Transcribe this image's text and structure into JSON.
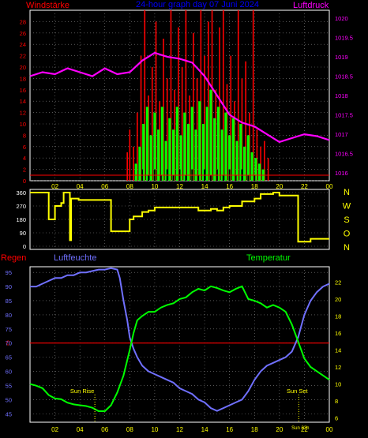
{
  "header": {
    "left_label": "Windstärke",
    "title": "24-hour graph day  07 Juni 2024",
    "right_label": "Luftdruck"
  },
  "colors": {
    "background": "#000000",
    "frame": "#ffffff",
    "gust": "#ff0000",
    "wind_avg": "#00ff00",
    "wind_min": "#000000",
    "pressure": "#ff00ff",
    "direction": "#ffff00",
    "humidity": "#7070ff",
    "temperature": "#00ff00",
    "rain": "#ff0000",
    "left_ticks": "#ff0000",
    "right_ticks_top": "#ff00ff",
    "right_ticks_bottom": "#ffff00",
    "x_ticks": "#ffff00",
    "title": "#0000ff"
  },
  "x_tick_labels": [
    "02",
    "04",
    "06",
    "08",
    "10",
    "12",
    "14",
    "16",
    "18",
    "20",
    "22",
    "00"
  ],
  "chart_data": [
    {
      "type": "bar",
      "name": "wind",
      "x": "hours 0-24",
      "ylabel": "Windstärke",
      "ylim": [
        0,
        30
      ],
      "yticks": [
        0,
        2,
        4,
        6,
        8,
        10,
        12,
        14,
        16,
        18,
        20,
        22,
        24,
        26,
        28
      ],
      "grid": true,
      "series": [
        {
          "style": "gust-segments",
          "segments": [
            [
              7.8,
              0,
              5
            ],
            [
              8.0,
              0,
              9
            ],
            [
              8.3,
              0,
              6
            ],
            [
              8.6,
              0,
              12
            ],
            [
              8.9,
              0,
              22
            ],
            [
              9.2,
              0,
              30
            ],
            [
              9.5,
              0,
              15
            ],
            [
              9.8,
              0,
              20
            ],
            [
              10.1,
              0,
              28
            ],
            [
              10.4,
              0,
              14
            ],
            [
              10.7,
              0,
              25
            ],
            [
              11.0,
              0,
              18
            ],
            [
              11.3,
              0,
              30
            ],
            [
              11.6,
              0,
              16
            ],
            [
              11.9,
              0,
              27
            ],
            [
              12.2,
              0,
              20
            ],
            [
              12.5,
              0,
              30
            ],
            [
              12.8,
              0,
              15
            ],
            [
              13.1,
              0,
              26
            ],
            [
              13.4,
              0,
              18
            ],
            [
              13.7,
              0,
              30
            ],
            [
              14.0,
              0,
              22
            ],
            [
              14.3,
              0,
              28
            ],
            [
              14.6,
              0,
              30
            ],
            [
              14.9,
              0,
              16
            ],
            [
              15.2,
              0,
              27
            ],
            [
              15.5,
              0,
              30
            ],
            [
              15.8,
              0,
              17
            ],
            [
              16.1,
              0,
              22
            ],
            [
              16.4,
              0,
              14
            ],
            [
              16.7,
              0,
              30
            ],
            [
              17.0,
              0,
              18
            ],
            [
              17.3,
              0,
              21
            ],
            [
              17.6,
              0,
              12
            ],
            [
              17.9,
              0,
              30
            ],
            [
              18.2,
              0,
              9
            ],
            [
              18.5,
              0,
              6
            ],
            [
              18.8,
              0,
              7
            ],
            [
              19.1,
              0,
              4
            ]
          ]
        },
        {
          "style": "avg-segments",
          "segments": [
            [
              8.5,
              0,
              3
            ],
            [
              8.8,
              0,
              6
            ],
            [
              9.1,
              0,
              10
            ],
            [
              9.4,
              0,
              13
            ],
            [
              9.7,
              0,
              8
            ],
            [
              10.0,
              0,
              12
            ],
            [
              10.3,
              0,
              9
            ],
            [
              10.6,
              0,
              13
            ],
            [
              10.9,
              0,
              7
            ],
            [
              11.2,
              0,
              11
            ],
            [
              11.5,
              0,
              9
            ],
            [
              11.8,
              0,
              13
            ],
            [
              12.1,
              0,
              8
            ],
            [
              12.4,
              0,
              12
            ],
            [
              12.7,
              0,
              10
            ],
            [
              13.0,
              0,
              13
            ],
            [
              13.3,
              0,
              9
            ],
            [
              13.6,
              0,
              14
            ],
            [
              13.9,
              0,
              10
            ],
            [
              14.2,
              0,
              13
            ],
            [
              14.5,
              0,
              16
            ],
            [
              14.8,
              0,
              11
            ],
            [
              15.1,
              0,
              13
            ],
            [
              15.4,
              0,
              9
            ],
            [
              15.7,
              0,
              12
            ],
            [
              16.0,
              0,
              8
            ],
            [
              16.3,
              0,
              11
            ],
            [
              16.6,
              0,
              7
            ],
            [
              16.9,
              0,
              10
            ],
            [
              17.2,
              0,
              6
            ],
            [
              17.5,
              0,
              8
            ],
            [
              17.8,
              0,
              5
            ],
            [
              18.1,
              0,
              4
            ],
            [
              18.4,
              0,
              3
            ],
            [
              18.7,
              0,
              2
            ]
          ]
        },
        {
          "style": "min-segments",
          "segments": [
            [
              9.0,
              0,
              2
            ],
            [
              9.5,
              0,
              1
            ],
            [
              10.0,
              0,
              2
            ],
            [
              10.5,
              0,
              1
            ],
            [
              11.0,
              0,
              2
            ],
            [
              11.5,
              0,
              1
            ],
            [
              12.0,
              0,
              2
            ],
            [
              12.5,
              0,
              1
            ],
            [
              13.0,
              0,
              2
            ],
            [
              13.5,
              0,
              1
            ],
            [
              14.0,
              0,
              2
            ],
            [
              14.5,
              0,
              1
            ],
            [
              15.0,
              0,
              2
            ],
            [
              15.5,
              0,
              1
            ],
            [
              16.0,
              0,
              2
            ],
            [
              16.5,
              0,
              1
            ],
            [
              17.0,
              0,
              2
            ],
            [
              17.5,
              0,
              1
            ],
            [
              18.0,
              0,
              1
            ]
          ]
        }
      ]
    },
    {
      "type": "line",
      "name": "pressure",
      "ylabel": "Luftdruck",
      "ylim": [
        1015.8,
        1020.2
      ],
      "yticks": [
        1016,
        1016.5,
        1017,
        1017.5,
        1018,
        1018.5,
        1019,
        1019.5,
        1020
      ],
      "x": [
        0,
        1,
        2,
        3,
        4,
        5,
        6,
        7,
        8,
        9,
        10,
        11,
        12,
        13,
        14,
        15,
        16,
        17,
        18,
        19,
        20,
        21,
        22,
        23,
        24
      ],
      "values": [
        1018.5,
        1018.6,
        1018.55,
        1018.7,
        1018.6,
        1018.5,
        1018.7,
        1018.55,
        1018.6,
        1018.9,
        1019.1,
        1019.0,
        1018.95,
        1018.85,
        1018.5,
        1018.0,
        1017.5,
        1017.3,
        1017.2,
        1017.0,
        1016.8,
        1016.9,
        1017.0,
        1016.95,
        1016.85
      ]
    },
    {
      "type": "line",
      "name": "direction",
      "ylim": [
        0,
        360
      ],
      "yticks": [
        0,
        90,
        180,
        270,
        360
      ],
      "right_labels": [
        "N",
        "W",
        "S",
        "O",
        "N"
      ],
      "x": [
        0,
        1.5,
        1.5,
        2.0,
        2.0,
        2.5,
        2.5,
        2.7,
        2.7,
        3.2,
        3.2,
        3.3,
        3.3,
        3.9,
        3.9,
        6.5,
        6.5,
        8.0,
        8.0,
        8.3,
        8.3,
        9.0,
        9.0,
        9.5,
        9.5,
        10.0,
        10.0,
        13.5,
        13.5,
        14.5,
        14.5,
        15.0,
        15.0,
        15.5,
        15.5,
        16.0,
        16.0,
        17.0,
        17.0,
        18.0,
        18.0,
        18.5,
        18.5,
        19.5,
        19.5,
        20.0,
        20.0,
        21.5,
        21.5,
        22.5,
        22.5,
        24
      ],
      "values": [
        360,
        360,
        180,
        180,
        270,
        270,
        290,
        290,
        360,
        360,
        40,
        40,
        320,
        320,
        310,
        310,
        100,
        100,
        180,
        180,
        200,
        200,
        230,
        230,
        240,
        240,
        260,
        260,
        240,
        240,
        250,
        250,
        240,
        240,
        260,
        260,
        270,
        270,
        300,
        300,
        320,
        320,
        350,
        350,
        360,
        360,
        340,
        340,
        30,
        30,
        50,
        50
      ]
    },
    {
      "type": "line",
      "name": "humidity",
      "ylabel": "Luftfeuchte",
      "ylim": [
        42,
        97
      ],
      "yticks": [
        45,
        50,
        55,
        60,
        65,
        70,
        75,
        80,
        85,
        90,
        95
      ],
      "x": [
        0,
        0.5,
        1,
        1.5,
        2,
        2.5,
        3,
        3.5,
        4,
        4.5,
        5,
        5.5,
        6,
        6.5,
        7,
        7.2,
        7.5,
        7.8,
        8,
        8.3,
        8.6,
        9,
        9.5,
        10,
        10.5,
        11,
        11.5,
        12,
        12.5,
        13,
        13.5,
        14,
        14.5,
        15,
        15.5,
        16,
        16.5,
        17,
        17.5,
        18,
        18.5,
        19,
        19.5,
        20,
        20.5,
        21,
        21.5,
        22,
        22.5,
        23,
        23.5,
        24
      ],
      "values": [
        90,
        90,
        91,
        92,
        93,
        93,
        94,
        94,
        95,
        95,
        95.5,
        96,
        96,
        96.5,
        96,
        93,
        85,
        78,
        72,
        68,
        65,
        62,
        60,
        59,
        58,
        57,
        56,
        54,
        53,
        52,
        50,
        49,
        47,
        46,
        47,
        48,
        49,
        50,
        53,
        57,
        60,
        62,
        63,
        64,
        65,
        67,
        72,
        80,
        85,
        88,
        90,
        91
      ]
    },
    {
      "type": "line",
      "name": "temperature",
      "ylabel": "Temperatur",
      "ylim": [
        5.5,
        23.8
      ],
      "yticks": [
        6,
        8,
        10,
        12,
        14,
        16,
        18,
        20,
        22
      ],
      "x": [
        0,
        0.5,
        1,
        1.5,
        2,
        2.5,
        3,
        3.5,
        4,
        4.5,
        5,
        5.5,
        6,
        6.5,
        7,
        7.5,
        8,
        8.3,
        8.6,
        9,
        9.5,
        10,
        10.5,
        11,
        11.5,
        12,
        12.5,
        13,
        13.5,
        14,
        14.5,
        15,
        15.5,
        16,
        16.5,
        17,
        17.5,
        18,
        18.5,
        19,
        19.5,
        20,
        20.5,
        21,
        21.5,
        22,
        22.5,
        23,
        23.5,
        24
      ],
      "values": [
        10,
        9.8,
        9.5,
        8.7,
        8.3,
        8.2,
        7.8,
        7.6,
        7.5,
        7.4,
        7.2,
        6.8,
        6.8,
        7.5,
        9,
        11,
        14,
        16,
        17.5,
        18,
        18.5,
        18.5,
        19,
        19.3,
        19.5,
        20,
        20.2,
        20.8,
        21.2,
        21,
        21.5,
        21.3,
        21,
        20.8,
        21.2,
        21.5,
        20,
        19.8,
        19.5,
        19,
        19.3,
        19,
        18.5,
        17,
        15,
        13,
        12,
        11.5,
        11,
        10.5
      ]
    },
    {
      "type": "line",
      "name": "rain",
      "ylabel": "Regen",
      "yticks": [
        0
      ],
      "x": [
        0,
        24
      ],
      "values": [
        0,
        0
      ]
    }
  ],
  "bottom_panel": {
    "rain_label": "Regen",
    "humidity_label": "Luftfeuchte",
    "temperature_label": "Temperatur",
    "rain_tick": "0",
    "sun_rise_label": "Sun Rise",
    "sun_set_label": "Sun Set",
    "sun_rise_hour": 5.2,
    "sun_set_hour": 21.55,
    "sun_time_label": "Sun 22h"
  }
}
